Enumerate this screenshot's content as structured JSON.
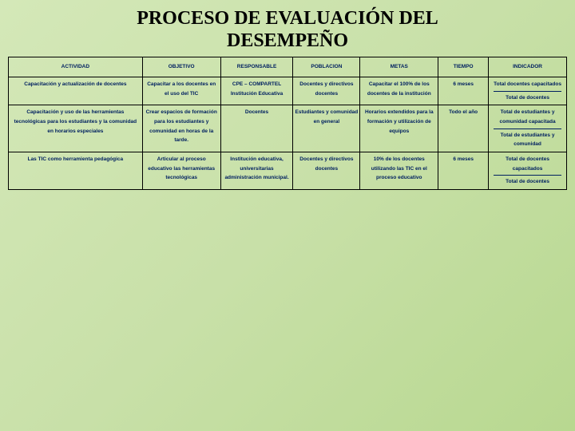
{
  "title_line1": "PROCESO DE EVALUACIÓN DEL",
  "title_line2": "DESEMPEÑO",
  "headers": {
    "actividad": "ACTIVIDAD",
    "objetivo": "OBJETIVO",
    "responsable": "RESPONSABLE",
    "poblacion": "POBLACION",
    "metas": "METAS",
    "tiempo": "TIEMPO",
    "indicador": "INDICADOR"
  },
  "row1": {
    "actividad": "Capacitación y actualización de docentes",
    "objetivo": "Capacitar a los docentes en el uso del TIC",
    "responsable": "CPE – COMPARTEL Institución Educativa",
    "poblacion": "Docentes y directivos docentes",
    "metas": "Capacitar el 100% de los docentes de la institución",
    "tiempo": "6 meses",
    "indicador_a": "Total docentes capacitados",
    "indicador_b": "Total de docentes"
  },
  "row2": {
    "actividad": "Capacitación y uso de las herramientas tecnológicas para los estudiantes y la comunidad en horarios especiales",
    "objetivo": "Crear espacios de formación para los estudiantes y comunidad en horas de la tarde.",
    "responsable": "Docentes",
    "poblacion": "Estudiantes y comunidad en general",
    "metas": "Horarios extendidos para la formación y utilización de equipos",
    "tiempo": "Todo el año",
    "indicador_a": "Total de estudiantes y comunidad capacitada",
    "indicador_b": "Total de estudiantes y comunidad"
  },
  "row3": {
    "actividad": "Las TIC como herramienta pedagógica",
    "objetivo": "Articular al proceso educativo las herramientas tecnológicas",
    "responsable": "Institución educativa, universitarias administración municipal.",
    "poblacion": "Docentes y directivos docentes",
    "metas": "10% de los docentes utilizando las TIC en el proceso educativo",
    "tiempo": "6  meses",
    "indicador_a": "Total de docentes capacitados",
    "indicador_b": "Total de docentes"
  }
}
